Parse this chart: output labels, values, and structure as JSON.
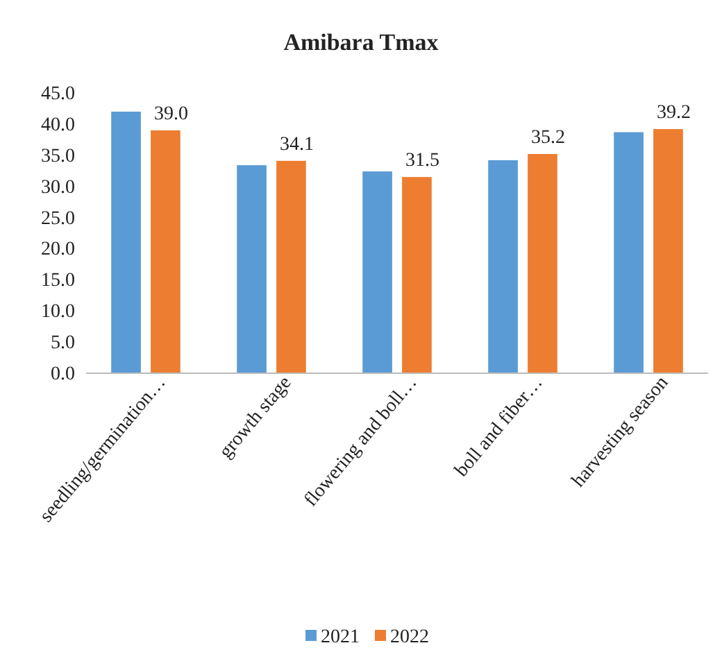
{
  "chart_data": {
    "type": "bar",
    "title": "Amibara Tmax",
    "categories": [
      "seedling/germination…",
      "growth stage",
      "flowering and boll…",
      "boll and fiber…",
      "harvesting season"
    ],
    "series": [
      {
        "name": "2021",
        "color": "#5b9bd5",
        "values": [
          42.0,
          33.4,
          32.4,
          34.2,
          38.7
        ]
      },
      {
        "name": "2022",
        "color": "#ed7d31",
        "values": [
          39.0,
          34.1,
          31.5,
          35.2,
          39.2
        ],
        "value_labels": [
          "39.0",
          "34.1",
          "31.5",
          "35.2",
          "39.2"
        ]
      }
    ],
    "ylim": [
      0,
      45
    ],
    "yticks": [
      {
        "value": 0,
        "label": "0.0"
      },
      {
        "value": 5,
        "label": "5.0"
      },
      {
        "value": 10,
        "label": "10.0"
      },
      {
        "value": 15,
        "label": "15.0"
      },
      {
        "value": 20,
        "label": "20.0"
      },
      {
        "value": 25,
        "label": "25.0"
      },
      {
        "value": 30,
        "label": "30.0"
      },
      {
        "value": 35,
        "label": "35.0"
      },
      {
        "value": 40,
        "label": "40.0"
      },
      {
        "value": 45,
        "label": "45.0"
      }
    ],
    "grid": false,
    "legend": "bottom"
  }
}
